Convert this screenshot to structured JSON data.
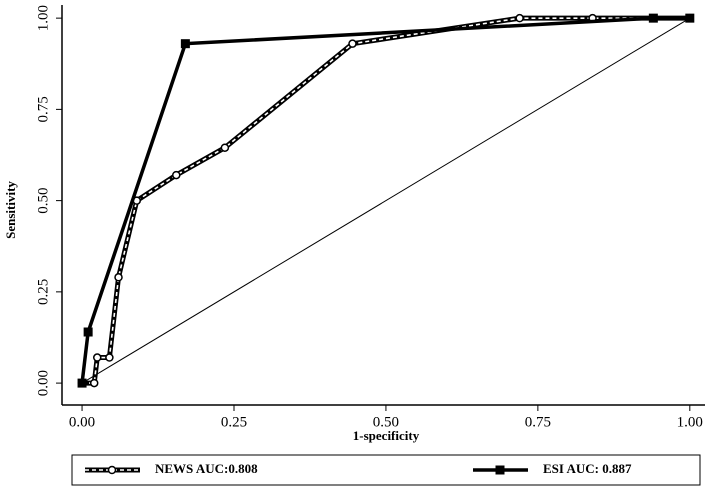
{
  "chart_data": {
    "type": "line",
    "xlabel": "1-specificity",
    "ylabel": "Sensitivity",
    "xlim": [
      -0.033,
      1.025
    ],
    "ylim": [
      -0.06,
      1.036
    ],
    "xticks": [
      {
        "value": 0,
        "label": "0.00"
      },
      {
        "value": 0.25,
        "label": "0.25"
      },
      {
        "value": 0.5,
        "label": "0.50"
      },
      {
        "value": 0.75,
        "label": "0.75"
      },
      {
        "value": 1,
        "label": "1.00"
      }
    ],
    "yticks": [
      {
        "value": 0,
        "label": "0.00"
      },
      {
        "value": 0.25,
        "label": "0.25"
      },
      {
        "value": 0.5,
        "label": "0.50"
      },
      {
        "value": 0.75,
        "label": "0.75"
      },
      {
        "value": 1,
        "label": "1.00"
      }
    ],
    "reference": {
      "x": [
        0,
        1
      ],
      "y": [
        0,
        1
      ]
    },
    "series": [
      {
        "name": "NEWS AUC:0.808",
        "color": "#000000",
        "line_style": "dashed-white",
        "marker": "open-circle",
        "x": [
          0,
          0.02,
          0.025,
          0.045,
          0.06,
          0.09,
          0.155,
          0.235,
          0.445,
          0.72,
          0.84,
          1
        ],
        "values": [
          0,
          0,
          0.07,
          0.07,
          0.29,
          0.5,
          0.57,
          0.645,
          0.93,
          1.0,
          1.0,
          1.0
        ]
      },
      {
        "name": "ESI AUC: 0.887",
        "color": "#000000",
        "line_style": "solid",
        "marker": "square",
        "x": [
          0,
          0.01,
          0.17,
          0.94,
          1
        ],
        "values": [
          0,
          0.14,
          0.93,
          1.0,
          1.0
        ]
      }
    ]
  }
}
